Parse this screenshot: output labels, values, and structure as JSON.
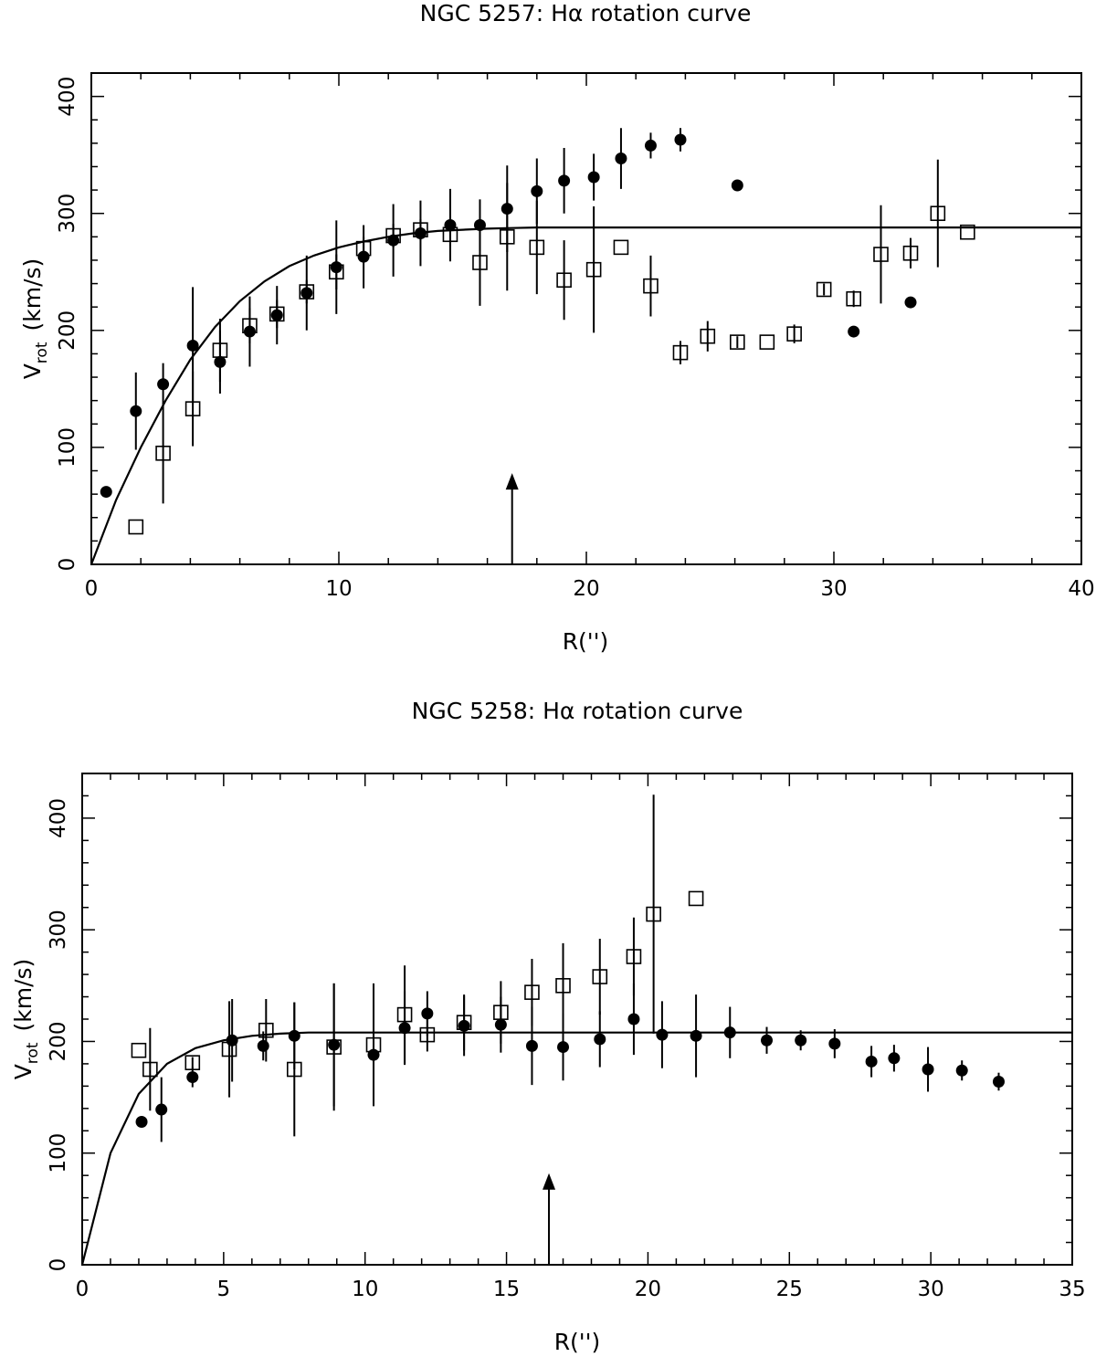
{
  "chart_data": [
    {
      "type": "scatter",
      "title": "NGC 5257: Hα rotation curve",
      "xlabel": "R('')",
      "ylabel_main": "V",
      "ylabel_sub": "rot",
      "ylabel_unit": "(km/s)",
      "xlim": [
        0,
        40
      ],
      "ylim": [
        0,
        420
      ],
      "xticks": [
        0,
        10,
        20,
        30,
        40
      ],
      "xticklabels": [
        "0",
        "10",
        "20",
        "30",
        "40"
      ],
      "yticks": [
        0,
        100,
        200,
        300,
        400
      ],
      "yticklabels": [
        "0",
        "100",
        "200",
        "300",
        "400"
      ],
      "xminor": 2,
      "yminor": 20,
      "arrow_x": 17,
      "arrow_range": [
        0,
        78
      ],
      "model_curve": {
        "name": "model",
        "x": [
          0,
          1,
          2,
          3,
          4,
          5,
          6,
          7,
          8,
          9,
          10,
          11,
          12,
          13,
          14,
          15,
          16,
          17,
          18,
          20,
          25,
          30,
          35,
          40
        ],
        "y": [
          0,
          55,
          100,
          140,
          175,
          203,
          225,
          242,
          255,
          264,
          271,
          276,
          280,
          283,
          285,
          286,
          287,
          287.5,
          288,
          288,
          288,
          288,
          288,
          288
        ]
      },
      "series": [
        {
          "name": "filled circles",
          "marker": "filled-circle",
          "points": [
            {
              "x": 0.6,
              "y": 62,
              "err": 0
            },
            {
              "x": 1.8,
              "y": 131,
              "err": 33
            },
            {
              "x": 2.9,
              "y": 154,
              "err": 18
            },
            {
              "x": 4.1,
              "y": 187,
              "err": 50
            },
            {
              "x": 5.2,
              "y": 173,
              "err": 27
            },
            {
              "x": 6.4,
              "y": 199,
              "err": 30
            },
            {
              "x": 7.5,
              "y": 213,
              "err": 25
            },
            {
              "x": 8.7,
              "y": 232,
              "err": 32
            },
            {
              "x": 9.9,
              "y": 254,
              "err": 40
            },
            {
              "x": 11.0,
              "y": 263,
              "err": 27
            },
            {
              "x": 12.2,
              "y": 277,
              "err": 31
            },
            {
              "x": 13.3,
              "y": 283,
              "err": 28
            },
            {
              "x": 14.5,
              "y": 290,
              "err": 31
            },
            {
              "x": 15.7,
              "y": 290,
              "err": 22
            },
            {
              "x": 16.8,
              "y": 304,
              "err": 37
            },
            {
              "x": 18.0,
              "y": 319,
              "err": 28
            },
            {
              "x": 19.1,
              "y": 328,
              "err": 28
            },
            {
              "x": 20.3,
              "y": 331,
              "err": 20
            },
            {
              "x": 21.4,
              "y": 347,
              "err": 26
            },
            {
              "x": 22.6,
              "y": 358,
              "err": 11
            },
            {
              "x": 23.8,
              "y": 363,
              "err": 10
            },
            {
              "x": 26.1,
              "y": 324,
              "err": 0
            },
            {
              "x": 30.8,
              "y": 199,
              "err": 0
            },
            {
              "x": 33.1,
              "y": 224,
              "err": 0
            }
          ]
        },
        {
          "name": "open squares",
          "marker": "open-square",
          "points": [
            {
              "x": 1.8,
              "y": 32,
              "err": 0
            },
            {
              "x": 2.9,
              "y": 95,
              "err": 43
            },
            {
              "x": 4.1,
              "y": 133,
              "err": 32
            },
            {
              "x": 5.2,
              "y": 183,
              "err": 27
            },
            {
              "x": 6.4,
              "y": 204,
              "err": 15
            },
            {
              "x": 7.5,
              "y": 214,
              "err": 12
            },
            {
              "x": 8.7,
              "y": 233,
              "err": 10
            },
            {
              "x": 9.9,
              "y": 250,
              "err": 15
            },
            {
              "x": 11.0,
              "y": 270,
              "err": 10
            },
            {
              "x": 12.2,
              "y": 281,
              "err": 10
            },
            {
              "x": 13.3,
              "y": 286,
              "err": 9
            },
            {
              "x": 14.5,
              "y": 282,
              "err": 10
            },
            {
              "x": 15.7,
              "y": 258,
              "err": 37
            },
            {
              "x": 16.8,
              "y": 280,
              "err": 46
            },
            {
              "x": 18.0,
              "y": 271,
              "err": 40
            },
            {
              "x": 19.1,
              "y": 243,
              "err": 34
            },
            {
              "x": 20.3,
              "y": 252,
              "err": 54
            },
            {
              "x": 21.4,
              "y": 271,
              "err": 0
            },
            {
              "x": 22.6,
              "y": 238,
              "err": 26
            },
            {
              "x": 23.8,
              "y": 181,
              "err": 10
            },
            {
              "x": 24.9,
              "y": 195,
              "err": 13
            },
            {
              "x": 26.1,
              "y": 190,
              "err": 5
            },
            {
              "x": 27.3,
              "y": 190,
              "err": 0
            },
            {
              "x": 28.4,
              "y": 197,
              "err": 8
            },
            {
              "x": 29.6,
              "y": 235,
              "err": 5
            },
            {
              "x": 30.8,
              "y": 227,
              "err": 7
            },
            {
              "x": 31.9,
              "y": 265,
              "err": 42
            },
            {
              "x": 33.1,
              "y": 266,
              "err": 13
            },
            {
              "x": 34.2,
              "y": 300,
              "err": 46
            },
            {
              "x": 35.4,
              "y": 284,
              "err": 0
            }
          ]
        }
      ]
    },
    {
      "type": "scatter",
      "title": "NGC 5258: Hα rotation curve",
      "xlabel": "R('')",
      "ylabel_main": "V",
      "ylabel_sub": "rot",
      "ylabel_unit": "(km/s)",
      "xlim": [
        0,
        35
      ],
      "ylim": [
        0,
        440
      ],
      "xticks": [
        0,
        5,
        10,
        15,
        20,
        25,
        30,
        35
      ],
      "xticklabels": [
        "0",
        "5",
        "10",
        "15",
        "20",
        "25",
        "30",
        "35"
      ],
      "yticks": [
        0,
        100,
        200,
        300,
        400
      ],
      "yticklabels": [
        "0",
        "100",
        "200",
        "300",
        "400"
      ],
      "xminor": 1,
      "yminor": 20,
      "arrow_x": 16.5,
      "arrow_range": [
        0,
        82
      ],
      "model_curve": {
        "name": "model",
        "x": [
          0,
          1,
          2,
          3,
          4,
          5,
          6,
          7,
          8,
          10,
          15,
          20,
          25,
          30,
          35
        ],
        "y": [
          0,
          100,
          153,
          180,
          194,
          201,
          205,
          207,
          208,
          208,
          208,
          208,
          208,
          208,
          208
        ]
      },
      "series": [
        {
          "name": "filled circles",
          "marker": "filled-circle",
          "points": [
            {
              "x": 2.1,
              "y": 128,
              "err": 0
            },
            {
              "x": 2.8,
              "y": 139,
              "err": 29
            },
            {
              "x": 3.9,
              "y": 168,
              "err": 9
            },
            {
              "x": 5.3,
              "y": 201,
              "err": 37
            },
            {
              "x": 6.4,
              "y": 196,
              "err": 13
            },
            {
              "x": 7.5,
              "y": 205,
              "err": 30
            },
            {
              "x": 8.9,
              "y": 197,
              "err": 55
            },
            {
              "x": 10.3,
              "y": 188,
              "err": 45
            },
            {
              "x": 11.4,
              "y": 212,
              "err": 33
            },
            {
              "x": 12.2,
              "y": 225,
              "err": 20
            },
            {
              "x": 13.5,
              "y": 214,
              "err": 27
            },
            {
              "x": 14.8,
              "y": 215,
              "err": 25
            },
            {
              "x": 15.9,
              "y": 196,
              "err": 35
            },
            {
              "x": 17.0,
              "y": 195,
              "err": 30
            },
            {
              "x": 18.3,
              "y": 202,
              "err": 25
            },
            {
              "x": 19.5,
              "y": 220,
              "err": 32
            },
            {
              "x": 20.5,
              "y": 206,
              "err": 30
            },
            {
              "x": 21.7,
              "y": 205,
              "err": 37
            },
            {
              "x": 22.9,
              "y": 208,
              "err": 23
            },
            {
              "x": 24.2,
              "y": 201,
              "err": 12
            },
            {
              "x": 25.4,
              "y": 201,
              "err": 9
            },
            {
              "x": 26.6,
              "y": 198,
              "err": 13
            },
            {
              "x": 27.9,
              "y": 182,
              "err": 14
            },
            {
              "x": 28.7,
              "y": 185,
              "err": 12
            },
            {
              "x": 29.9,
              "y": 175,
              "err": 20
            },
            {
              "x": 31.1,
              "y": 174,
              "err": 9
            },
            {
              "x": 32.4,
              "y": 164,
              "err": 8
            }
          ]
        },
        {
          "name": "open squares",
          "marker": "open-square",
          "points": [
            {
              "x": 2.0,
              "y": 192,
              "err": 0
            },
            {
              "x": 2.4,
              "y": 175,
              "err": 37
            },
            {
              "x": 3.9,
              "y": 181,
              "err": 5
            },
            {
              "x": 5.2,
              "y": 193,
              "err": 43
            },
            {
              "x": 6.5,
              "y": 210,
              "err": 28
            },
            {
              "x": 7.5,
              "y": 175,
              "err": 60
            },
            {
              "x": 8.9,
              "y": 195,
              "err": 57
            },
            {
              "x": 10.3,
              "y": 197,
              "err": 55
            },
            {
              "x": 11.4,
              "y": 224,
              "err": 44
            },
            {
              "x": 12.2,
              "y": 206,
              "err": 15
            },
            {
              "x": 13.5,
              "y": 217,
              "err": 25
            },
            {
              "x": 14.8,
              "y": 226,
              "err": 28
            },
            {
              "x": 15.9,
              "y": 244,
              "err": 30
            },
            {
              "x": 17.0,
              "y": 250,
              "err": 38
            },
            {
              "x": 18.3,
              "y": 258,
              "err": 34
            },
            {
              "x": 19.5,
              "y": 276,
              "err": 35
            },
            {
              "x": 20.2,
              "y": 314,
              "err": 107
            },
            {
              "x": 21.7,
              "y": 328,
              "err": 0
            }
          ]
        }
      ]
    }
  ]
}
